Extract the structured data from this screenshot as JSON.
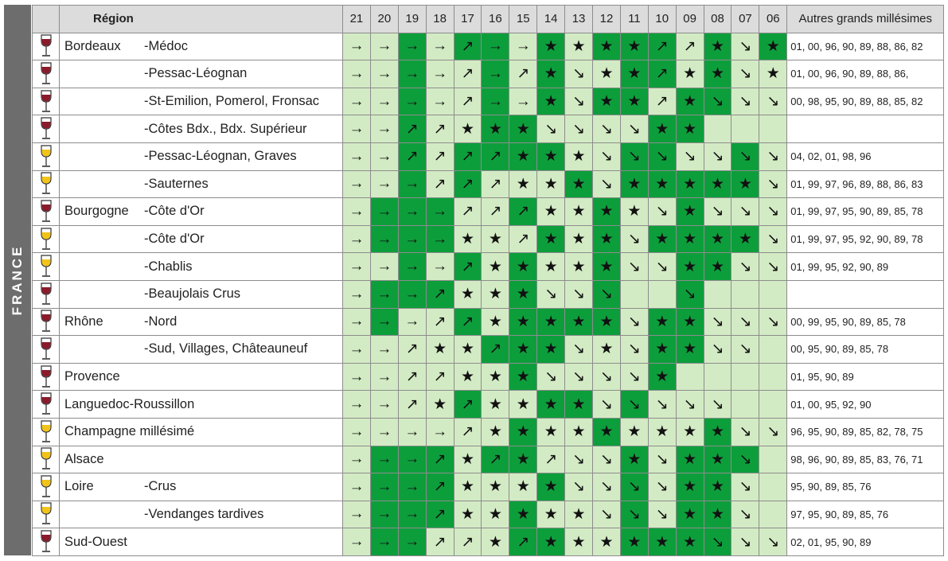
{
  "side_label": "FRANCE",
  "headers": {
    "region": "Région",
    "years": [
      "21",
      "20",
      "19",
      "18",
      "17",
      "16",
      "15",
      "14",
      "13",
      "12",
      "11",
      "10",
      "09",
      "08",
      "07",
      "06"
    ],
    "other": "Autres grands millésimes"
  },
  "colors": {
    "red_wine": "#8b1a2b",
    "white_wine": "#f2c318",
    "dark_green": "#0d9e3c",
    "light_green": "#d3ebc4"
  },
  "rows": [
    {
      "wine": "red",
      "region": "Bordeaux",
      "sub": "-Médoc",
      "cells": [
        [
          "→",
          "L"
        ],
        [
          "→",
          "L"
        ],
        [
          "→",
          "D"
        ],
        [
          "→",
          "L"
        ],
        [
          "↗",
          "D"
        ],
        [
          "→",
          "D"
        ],
        [
          "→",
          "L"
        ],
        [
          "★",
          "D"
        ],
        [
          "★",
          "L"
        ],
        [
          "★",
          "D"
        ],
        [
          "★",
          "D"
        ],
        [
          "↗",
          "D"
        ],
        [
          "↗",
          "L"
        ],
        [
          "★",
          "D"
        ],
        [
          "↘",
          "L"
        ],
        [
          "★",
          "D"
        ]
      ],
      "other": "01, 00, 96, 90, 89, 88, 86, 82"
    },
    {
      "wine": "red",
      "region": "",
      "sub": "-Pessac-Léognan",
      "cells": [
        [
          "→",
          "L"
        ],
        [
          "→",
          "L"
        ],
        [
          "→",
          "D"
        ],
        [
          "→",
          "L"
        ],
        [
          "↗",
          "L"
        ],
        [
          "→",
          "D"
        ],
        [
          "↗",
          "L"
        ],
        [
          "★",
          "D"
        ],
        [
          "↘",
          "L"
        ],
        [
          "★",
          "L"
        ],
        [
          "★",
          "D"
        ],
        [
          "↗",
          "D"
        ],
        [
          "★",
          "L"
        ],
        [
          "★",
          "D"
        ],
        [
          "↘",
          "L"
        ],
        [
          "★",
          "L"
        ]
      ],
      "other": "01, 00, 96, 90, 89, 88, 86,"
    },
    {
      "wine": "red",
      "region": "",
      "sub": "-St-Emilion, Pomerol, Fronsac",
      "cells": [
        [
          "→",
          "L"
        ],
        [
          "→",
          "L"
        ],
        [
          "→",
          "D"
        ],
        [
          "→",
          "L"
        ],
        [
          "↗",
          "L"
        ],
        [
          "→",
          "D"
        ],
        [
          "→",
          "L"
        ],
        [
          "★",
          "D"
        ],
        [
          "↘",
          "L"
        ],
        [
          "★",
          "D"
        ],
        [
          "★",
          "D"
        ],
        [
          "↗",
          "L"
        ],
        [
          "★",
          "D"
        ],
        [
          "↘",
          "D"
        ],
        [
          "↘",
          "L"
        ],
        [
          "↘",
          "L"
        ]
      ],
      "other": "00, 98, 95, 90, 89, 88, 85, 82"
    },
    {
      "wine": "red",
      "region": "",
      "sub": "-Côtes Bdx., Bdx. Supérieur",
      "cells": [
        [
          "→",
          "L"
        ],
        [
          "→",
          "L"
        ],
        [
          "↗",
          "D"
        ],
        [
          "↗",
          "L"
        ],
        [
          "★",
          "L"
        ],
        [
          "★",
          "D"
        ],
        [
          "★",
          "D"
        ],
        [
          "↘",
          "L"
        ],
        [
          "↘",
          "L"
        ],
        [
          "↘",
          "L"
        ],
        [
          "↘",
          "L"
        ],
        [
          "★",
          "D"
        ],
        [
          "★",
          "D"
        ],
        [
          "",
          "E"
        ],
        [
          "",
          "E"
        ],
        [
          "",
          "E"
        ]
      ],
      "other": ""
    },
    {
      "wine": "white",
      "region": "",
      "sub": "-Pessac-Léognan, Graves",
      "cells": [
        [
          "→",
          "L"
        ],
        [
          "→",
          "L"
        ],
        [
          "↗",
          "D"
        ],
        [
          "↗",
          "L"
        ],
        [
          "↗",
          "D"
        ],
        [
          "↗",
          "D"
        ],
        [
          "★",
          "D"
        ],
        [
          "★",
          "D"
        ],
        [
          "★",
          "L"
        ],
        [
          "↘",
          "L"
        ],
        [
          "↘",
          "D"
        ],
        [
          "↘",
          "D"
        ],
        [
          "↘",
          "L"
        ],
        [
          "↘",
          "L"
        ],
        [
          "↘",
          "D"
        ],
        [
          "↘",
          "L"
        ]
      ],
      "other": "04, 02, 01, 98, 96"
    },
    {
      "wine": "white",
      "region": "",
      "sub": "-Sauternes",
      "cells": [
        [
          "→",
          "L"
        ],
        [
          "→",
          "L"
        ],
        [
          "→",
          "D"
        ],
        [
          "↗",
          "L"
        ],
        [
          "↗",
          "D"
        ],
        [
          "↗",
          "L"
        ],
        [
          "★",
          "L"
        ],
        [
          "★",
          "L"
        ],
        [
          "★",
          "D"
        ],
        [
          "↘",
          "L"
        ],
        [
          "★",
          "D"
        ],
        [
          "★",
          "D"
        ],
        [
          "★",
          "D"
        ],
        [
          "★",
          "D"
        ],
        [
          "★",
          "D"
        ],
        [
          "↘",
          "L"
        ]
      ],
      "other": "01, 99, 97, 96, 89, 88, 86, 83"
    },
    {
      "wine": "red",
      "region": "Bourgogne",
      "sub": "-Côte d'Or",
      "cells": [
        [
          "→",
          "L"
        ],
        [
          "→",
          "D"
        ],
        [
          "→",
          "D"
        ],
        [
          "→",
          "D"
        ],
        [
          "↗",
          "L"
        ],
        [
          "↗",
          "L"
        ],
        [
          "↗",
          "D"
        ],
        [
          "★",
          "L"
        ],
        [
          "★",
          "L"
        ],
        [
          "★",
          "D"
        ],
        [
          "★",
          "L"
        ],
        [
          "↘",
          "L"
        ],
        [
          "★",
          "D"
        ],
        [
          "↘",
          "L"
        ],
        [
          "↘",
          "L"
        ],
        [
          "↘",
          "L"
        ]
      ],
      "other": "01, 99, 97, 95, 90, 89, 85, 78"
    },
    {
      "wine": "white",
      "region": "",
      "sub": "-Côte d'Or",
      "cells": [
        [
          "→",
          "L"
        ],
        [
          "→",
          "D"
        ],
        [
          "→",
          "D"
        ],
        [
          "→",
          "D"
        ],
        [
          "★",
          "L"
        ],
        [
          "★",
          "L"
        ],
        [
          "↗",
          "L"
        ],
        [
          "★",
          "D"
        ],
        [
          "★",
          "L"
        ],
        [
          "★",
          "D"
        ],
        [
          "↘",
          "L"
        ],
        [
          "★",
          "D"
        ],
        [
          "★",
          "D"
        ],
        [
          "★",
          "D"
        ],
        [
          "★",
          "D"
        ],
        [
          "↘",
          "L"
        ]
      ],
      "other": "01, 99, 97, 95, 92, 90, 89, 78"
    },
    {
      "wine": "white",
      "region": "",
      "sub": "-Chablis",
      "cells": [
        [
          "→",
          "L"
        ],
        [
          "→",
          "L"
        ],
        [
          "→",
          "D"
        ],
        [
          "→",
          "L"
        ],
        [
          "↗",
          "D"
        ],
        [
          "★",
          "L"
        ],
        [
          "★",
          "D"
        ],
        [
          "★",
          "L"
        ],
        [
          "★",
          "L"
        ],
        [
          "★",
          "D"
        ],
        [
          "↘",
          "L"
        ],
        [
          "↘",
          "L"
        ],
        [
          "★",
          "D"
        ],
        [
          "★",
          "D"
        ],
        [
          "↘",
          "L"
        ],
        [
          "↘",
          "L"
        ]
      ],
      "other": "01, 99, 95, 92, 90, 89"
    },
    {
      "wine": "red",
      "region": "",
      "sub": "-Beaujolais Crus",
      "cells": [
        [
          "→",
          "L"
        ],
        [
          "→",
          "D"
        ],
        [
          "→",
          "D"
        ],
        [
          "↗",
          "D"
        ],
        [
          "★",
          "L"
        ],
        [
          "★",
          "L"
        ],
        [
          "★",
          "D"
        ],
        [
          "↘",
          "L"
        ],
        [
          "↘",
          "L"
        ],
        [
          "↘",
          "D"
        ],
        [
          "",
          "E"
        ],
        [
          "",
          "E"
        ],
        [
          "↘",
          "D"
        ],
        [
          "",
          "E"
        ],
        [
          "",
          "E"
        ],
        [
          "",
          "E"
        ]
      ],
      "other": ""
    },
    {
      "wine": "red",
      "region": "Rhône",
      "sub": "-Nord",
      "cells": [
        [
          "→",
          "L"
        ],
        [
          "→",
          "D"
        ],
        [
          "→",
          "L"
        ],
        [
          "↗",
          "L"
        ],
        [
          "↗",
          "D"
        ],
        [
          "★",
          "L"
        ],
        [
          "★",
          "D"
        ],
        [
          "★",
          "D"
        ],
        [
          "★",
          "D"
        ],
        [
          "★",
          "D"
        ],
        [
          "↘",
          "L"
        ],
        [
          "★",
          "D"
        ],
        [
          "★",
          "D"
        ],
        [
          "↘",
          "L"
        ],
        [
          "↘",
          "L"
        ],
        [
          "↘",
          "L"
        ]
      ],
      "other": "00, 99, 95, 90, 89, 85, 78"
    },
    {
      "wine": "red",
      "region": "",
      "sub": "-Sud, Villages, Châteauneuf",
      "cells": [
        [
          "→",
          "L"
        ],
        [
          "→",
          "L"
        ],
        [
          "↗",
          "L"
        ],
        [
          "★",
          "L"
        ],
        [
          "★",
          "L"
        ],
        [
          "↗",
          "D"
        ],
        [
          "★",
          "D"
        ],
        [
          "★",
          "D"
        ],
        [
          "↘",
          "L"
        ],
        [
          "★",
          "L"
        ],
        [
          "↘",
          "L"
        ],
        [
          "★",
          "D"
        ],
        [
          "★",
          "D"
        ],
        [
          "↘",
          "L"
        ],
        [
          "↘",
          "L"
        ],
        [
          "",
          "E"
        ]
      ],
      "other": "00, 95, 90, 89, 85, 78"
    },
    {
      "wine": "red",
      "region": "Provence",
      "sub": "",
      "cells": [
        [
          "→",
          "L"
        ],
        [
          "→",
          "L"
        ],
        [
          "↗",
          "L"
        ],
        [
          "↗",
          "L"
        ],
        [
          "★",
          "L"
        ],
        [
          "★",
          "L"
        ],
        [
          "★",
          "D"
        ],
        [
          "↘",
          "L"
        ],
        [
          "↘",
          "L"
        ],
        [
          "↘",
          "L"
        ],
        [
          "↘",
          "L"
        ],
        [
          "★",
          "D"
        ],
        [
          "",
          "E"
        ],
        [
          "",
          "E"
        ],
        [
          "",
          "E"
        ],
        [
          "",
          "E"
        ]
      ],
      "other": "01, 95, 90, 89"
    },
    {
      "wine": "red",
      "region": "Languedoc-Roussillon",
      "sub": "",
      "cells": [
        [
          "→",
          "L"
        ],
        [
          "→",
          "L"
        ],
        [
          "↗",
          "L"
        ],
        [
          "★",
          "L"
        ],
        [
          "↗",
          "D"
        ],
        [
          "★",
          "L"
        ],
        [
          "★",
          "L"
        ],
        [
          "★",
          "D"
        ],
        [
          "★",
          "D"
        ],
        [
          "↘",
          "L"
        ],
        [
          "↘",
          "D"
        ],
        [
          "↘",
          "L"
        ],
        [
          "↘",
          "L"
        ],
        [
          "↘",
          "L"
        ],
        [
          "",
          "E"
        ],
        [
          "",
          "E"
        ]
      ],
      "other": "01, 00, 95, 92, 90"
    },
    {
      "wine": "white",
      "region": "Champagne millésimé",
      "sub": "",
      "cells": [
        [
          "→",
          "L"
        ],
        [
          "→",
          "L"
        ],
        [
          "→",
          "L"
        ],
        [
          "→",
          "L"
        ],
        [
          "↗",
          "L"
        ],
        [
          "★",
          "L"
        ],
        [
          "★",
          "D"
        ],
        [
          "★",
          "L"
        ],
        [
          "★",
          "L"
        ],
        [
          "★",
          "D"
        ],
        [
          "★",
          "L"
        ],
        [
          "★",
          "L"
        ],
        [
          "★",
          "L"
        ],
        [
          "★",
          "D"
        ],
        [
          "↘",
          "L"
        ],
        [
          "↘",
          "L"
        ]
      ],
      "other": "96, 95, 90, 89, 85, 82, 78, 75"
    },
    {
      "wine": "white",
      "region": "Alsace",
      "sub": "",
      "cells": [
        [
          "→",
          "L"
        ],
        [
          "→",
          "D"
        ],
        [
          "→",
          "D"
        ],
        [
          "↗",
          "D"
        ],
        [
          "★",
          "L"
        ],
        [
          "↗",
          "D"
        ],
        [
          "★",
          "D"
        ],
        [
          "↗",
          "L"
        ],
        [
          "↘",
          "L"
        ],
        [
          "↘",
          "L"
        ],
        [
          "★",
          "D"
        ],
        [
          "↘",
          "L"
        ],
        [
          "★",
          "D"
        ],
        [
          "★",
          "D"
        ],
        [
          "↘",
          "D"
        ],
        [
          "",
          "E"
        ]
      ],
      "other": "98, 96, 90, 89, 85, 83, 76, 71"
    },
    {
      "wine": "white",
      "region": "Loire",
      "sub": "-Crus",
      "cells": [
        [
          "→",
          "L"
        ],
        [
          "→",
          "D"
        ],
        [
          "→",
          "D"
        ],
        [
          "↗",
          "D"
        ],
        [
          "★",
          "L"
        ],
        [
          "★",
          "L"
        ],
        [
          "★",
          "L"
        ],
        [
          "★",
          "D"
        ],
        [
          "↘",
          "L"
        ],
        [
          "↘",
          "L"
        ],
        [
          "↘",
          "D"
        ],
        [
          "↘",
          "L"
        ],
        [
          "★",
          "D"
        ],
        [
          "★",
          "D"
        ],
        [
          "↘",
          "L"
        ],
        [
          "",
          "E"
        ]
      ],
      "other": "95, 90, 89, 85, 76"
    },
    {
      "wine": "white",
      "region": "",
      "sub": "-Vendanges tardives",
      "cells": [
        [
          "→",
          "L"
        ],
        [
          "→",
          "D"
        ],
        [
          "→",
          "D"
        ],
        [
          "↗",
          "D"
        ],
        [
          "★",
          "L"
        ],
        [
          "★",
          "L"
        ],
        [
          "★",
          "D"
        ],
        [
          "★",
          "L"
        ],
        [
          "★",
          "L"
        ],
        [
          "↘",
          "L"
        ],
        [
          "↘",
          "D"
        ],
        [
          "↘",
          "L"
        ],
        [
          "★",
          "D"
        ],
        [
          "★",
          "D"
        ],
        [
          "↘",
          "L"
        ],
        [
          "",
          "E"
        ]
      ],
      "other": "97, 95, 90, 89, 85, 76"
    },
    {
      "wine": "red",
      "region": "Sud-Ouest",
      "sub": "",
      "cells": [
        [
          "→",
          "L"
        ],
        [
          "→",
          "D"
        ],
        [
          "→",
          "D"
        ],
        [
          "↗",
          "L"
        ],
        [
          "↗",
          "L"
        ],
        [
          "★",
          "L"
        ],
        [
          "↗",
          "D"
        ],
        [
          "★",
          "D"
        ],
        [
          "★",
          "L"
        ],
        [
          "★",
          "L"
        ],
        [
          "★",
          "D"
        ],
        [
          "★",
          "D"
        ],
        [
          "★",
          "D"
        ],
        [
          "↘",
          "D"
        ],
        [
          "↘",
          "L"
        ],
        [
          "↘",
          "L"
        ]
      ],
      "other": "02, 01, 95, 90, 89"
    }
  ]
}
